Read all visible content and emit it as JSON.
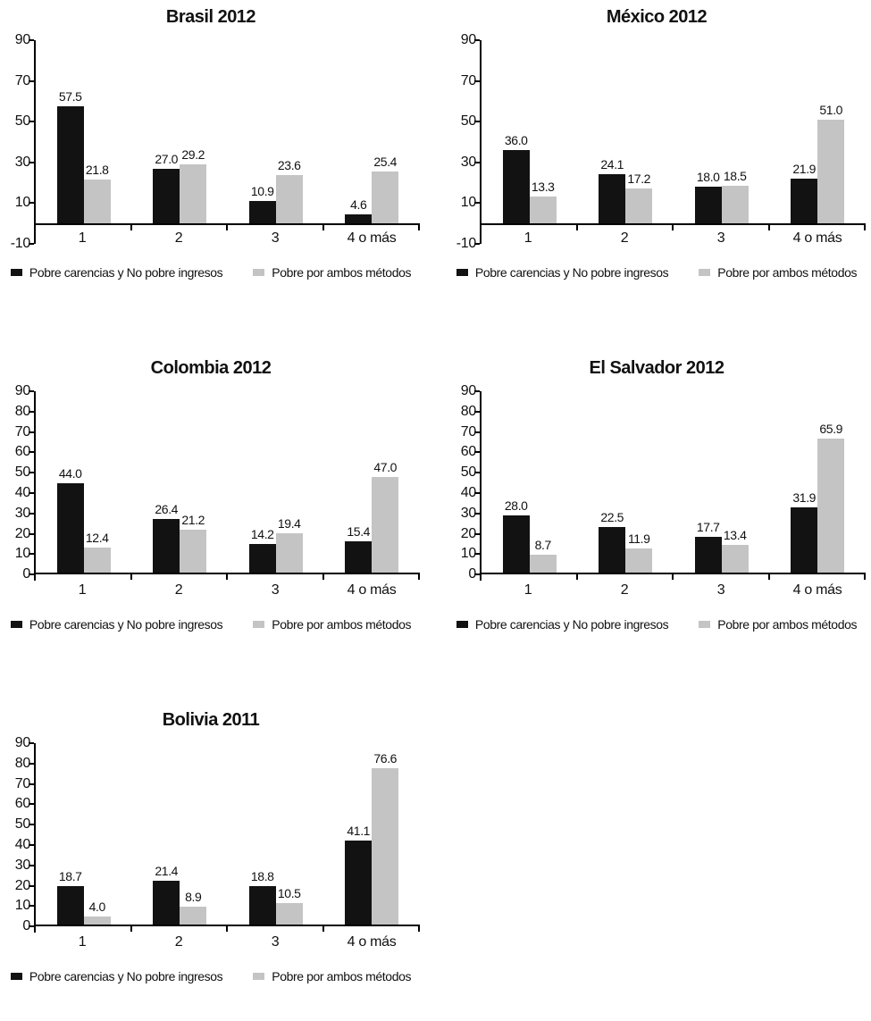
{
  "colors": {
    "series1": "#121212",
    "series2": "#c4c4c4",
    "axis": "#000000",
    "text": "#111111"
  },
  "legend": {
    "series1_label": "Pobre carencias y No pobre ingresos",
    "series2_label": "Pobre por ambos métodos"
  },
  "chart_data": [
    {
      "type": "bar",
      "title": "Brasil 2012",
      "categories": [
        "1",
        "2",
        "3",
        "4 o más"
      ],
      "series": [
        {
          "name": "Pobre carencias y No pobre ingresos",
          "color": "#121212",
          "values": [
            57.5,
            27.0,
            10.9,
            4.6
          ]
        },
        {
          "name": "Pobre por ambos métodos",
          "color": "#c4c4c4",
          "values": [
            21.8,
            29.2,
            23.6,
            25.4
          ]
        }
      ],
      "xlabel": "",
      "ylabel": "",
      "ylim": [
        -10,
        90
      ],
      "yticks": [
        90,
        70,
        50,
        30,
        10,
        -10
      ],
      "grid": false,
      "legend_position": "bottom",
      "data_labels": true
    },
    {
      "type": "bar",
      "title": "México 2012",
      "categories": [
        "1",
        "2",
        "3",
        "4 o más"
      ],
      "series": [
        {
          "name": "Pobre carencias y No pobre ingresos",
          "color": "#121212",
          "values": [
            36.0,
            24.1,
            18.0,
            21.9
          ]
        },
        {
          "name": "Pobre por ambos métodos",
          "color": "#c4c4c4",
          "values": [
            13.3,
            17.2,
            18.5,
            51.0
          ]
        }
      ],
      "xlabel": "",
      "ylabel": "",
      "ylim": [
        -10,
        90
      ],
      "yticks": [
        90,
        70,
        50,
        30,
        10,
        -10
      ],
      "grid": false,
      "legend_position": "bottom",
      "data_labels": true
    },
    {
      "type": "bar",
      "title": "Colombia 2012",
      "categories": [
        "1",
        "2",
        "3",
        "4 o más"
      ],
      "series": [
        {
          "name": "Pobre carencias y No pobre ingresos",
          "color": "#121212",
          "values": [
            44.0,
            26.4,
            14.2,
            15.4
          ]
        },
        {
          "name": "Pobre por ambos métodos",
          "color": "#c4c4c4",
          "values": [
            12.4,
            21.2,
            19.4,
            47.0
          ]
        }
      ],
      "xlabel": "",
      "ylabel": "",
      "ylim": [
        0,
        90
      ],
      "yticks": [
        90,
        80,
        70,
        60,
        50,
        40,
        30,
        20,
        10,
        0
      ],
      "grid": false,
      "legend_position": "bottom",
      "data_labels": true
    },
    {
      "type": "bar",
      "title": "El Salvador 2012",
      "categories": [
        "1",
        "2",
        "3",
        "4 o más"
      ],
      "series": [
        {
          "name": "Pobre carencias y No pobre ingresos",
          "color": "#121212",
          "values": [
            28.0,
            22.5,
            17.7,
            31.9
          ]
        },
        {
          "name": "Pobre por ambos métodos",
          "color": "#c4c4c4",
          "values": [
            8.7,
            11.9,
            13.4,
            65.9
          ]
        }
      ],
      "xlabel": "",
      "ylabel": "",
      "ylim": [
        0,
        90
      ],
      "yticks": [
        90,
        80,
        70,
        60,
        50,
        40,
        30,
        20,
        10,
        0
      ],
      "grid": false,
      "legend_position": "bottom",
      "data_labels": true
    },
    {
      "type": "bar",
      "title": "Bolivia 2011",
      "categories": [
        "1",
        "2",
        "3",
        "4 o más"
      ],
      "series": [
        {
          "name": "Pobre carencias y No pobre ingresos",
          "color": "#121212",
          "values": [
            18.7,
            21.4,
            18.8,
            41.1
          ]
        },
        {
          "name": "Pobre por ambos métodos",
          "color": "#c4c4c4",
          "values": [
            4.0,
            8.9,
            10.5,
            76.6
          ]
        }
      ],
      "xlabel": "",
      "ylabel": "",
      "ylim": [
        0,
        90
      ],
      "yticks": [
        90,
        80,
        70,
        60,
        50,
        40,
        30,
        20,
        10,
        0
      ],
      "grid": false,
      "legend_position": "bottom",
      "data_labels": true
    }
  ]
}
